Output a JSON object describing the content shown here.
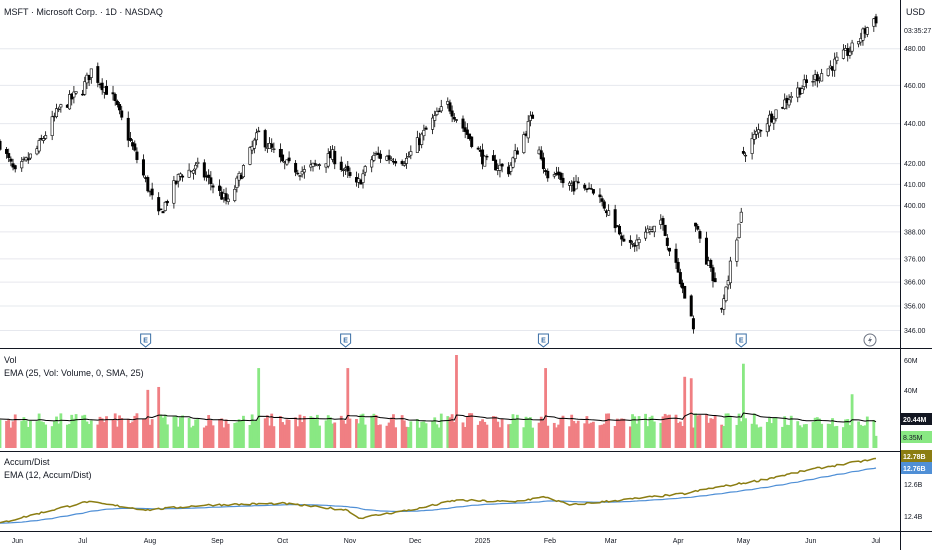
{
  "header": {
    "symbol_title": "MSFT · Microsoft Corp. · 1D · NASDAQ",
    "currency": "USD",
    "countdown": "03:35:27"
  },
  "colors": {
    "up": "#000000",
    "down": "#000000",
    "vol_up": "#89e883",
    "vol_down": "#f07f83",
    "vol_ema": "#000000",
    "accum": "#8b7d12",
    "accum_ema": "#4f8fd6",
    "grid": "#e6e8ee",
    "separator": "#131722"
  },
  "price_pane": {
    "y_ticks": [
      "480.00",
      "460.00",
      "440.00",
      "420.00",
      "410.00",
      "400.00",
      "388.00",
      "376.00",
      "366.00",
      "356.00",
      "346.00"
    ],
    "earnings_marker_label": "E",
    "earnings_dates": [
      "2024-07-30",
      "2024-10-30",
      "2025-01-29",
      "2025-04-30"
    ],
    "dividend_icon": "lightning-icon"
  },
  "volume_pane": {
    "title": "Vol",
    "indicator_label": "EMA (25, Vol: Volume, 0, SMA, 25)",
    "y_ticks": [
      "60M",
      "40M"
    ],
    "ema_value_badge": "20.44M",
    "last_volume_badge": "8.35M"
  },
  "accum_pane": {
    "title": "Accum/Dist",
    "indicator_label": "EMA (12, Accum/Dist)",
    "y_ticks": [
      "12.6B",
      "12.4B"
    ],
    "value_badge": "12.78B",
    "ema_badge": "12.76B"
  },
  "x_axis": {
    "labels": [
      "Jun",
      "Jul",
      "Aug",
      "Sep",
      "Oct",
      "Nov",
      "Dec",
      "2025",
      "Feb",
      "Mar",
      "Apr",
      "May",
      "Jun",
      "Jul"
    ]
  },
  "chart_data": {
    "type": "candlestick",
    "title": "MSFT · Microsoft Corp. · 1D · NASDAQ",
    "currency": "USD",
    "price_scale": "log",
    "x_range": [
      "2024-05-24",
      "2025-07-01"
    ],
    "y_range": [
      343,
      505
    ],
    "price_path": [
      {
        "date": "2024-05-24",
        "close": 430
      },
      {
        "date": "2024-05-31",
        "close": 415
      },
      {
        "date": "2024-06-10",
        "close": 427
      },
      {
        "date": "2024-06-20",
        "close": 447
      },
      {
        "date": "2024-07-01",
        "close": 458
      },
      {
        "date": "2024-07-05",
        "close": 468
      },
      {
        "date": "2024-07-15",
        "close": 453
      },
      {
        "date": "2024-07-25",
        "close": 425
      },
      {
        "date": "2024-08-05",
        "close": 395
      },
      {
        "date": "2024-08-15",
        "close": 415
      },
      {
        "date": "2024-08-23",
        "close": 418
      },
      {
        "date": "2024-09-06",
        "close": 401
      },
      {
        "date": "2024-09-20",
        "close": 435
      },
      {
        "date": "2024-10-01",
        "close": 420
      },
      {
        "date": "2024-10-11",
        "close": 416
      },
      {
        "date": "2024-10-24",
        "close": 424
      },
      {
        "date": "2024-11-04",
        "close": 409
      },
      {
        "date": "2024-11-12",
        "close": 424
      },
      {
        "date": "2024-11-27",
        "close": 422
      },
      {
        "date": "2024-12-10",
        "close": 443
      },
      {
        "date": "2024-12-16",
        "close": 450
      },
      {
        "date": "2025-01-02",
        "close": 421
      },
      {
        "date": "2025-01-13",
        "close": 417
      },
      {
        "date": "2025-01-24",
        "close": 444
      },
      {
        "date": "2025-01-30",
        "close": 414
      },
      {
        "date": "2025-02-10",
        "close": 410
      },
      {
        "date": "2025-02-21",
        "close": 408
      },
      {
        "date": "2025-03-03",
        "close": 392
      },
      {
        "date": "2025-03-10",
        "close": 381
      },
      {
        "date": "2025-03-24",
        "close": 393
      },
      {
        "date": "2025-04-04",
        "close": 360
      },
      {
        "date": "2025-04-08",
        "close": 348
      },
      {
        "date": "2025-04-09",
        "close": 390
      },
      {
        "date": "2025-04-21",
        "close": 356
      },
      {
        "date": "2025-04-30",
        "close": 395
      },
      {
        "date": "2025-05-01",
        "close": 425
      },
      {
        "date": "2025-05-09",
        "close": 438
      },
      {
        "date": "2025-05-23",
        "close": 455
      },
      {
        "date": "2025-06-10",
        "close": 470
      },
      {
        "date": "2025-06-20",
        "close": 480
      },
      {
        "date": "2025-06-30",
        "close": 497
      }
    ],
    "volume": {
      "name": "Vol",
      "ema_period": 25,
      "ema_last_millions": 20.44,
      "last_millions": 8.35,
      "y_ticks_millions": [
        60,
        40
      ],
      "spikes": [
        {
          "date": "2024-07-31",
          "millions": 40
        },
        {
          "date": "2024-08-05",
          "millions": 42
        },
        {
          "date": "2024-09-20",
          "millions": 55
        },
        {
          "date": "2024-10-31",
          "millions": 55
        },
        {
          "date": "2024-12-20",
          "millions": 64
        },
        {
          "date": "2025-01-30",
          "millions": 55
        },
        {
          "date": "2025-04-04",
          "millions": 49
        },
        {
          "date": "2025-04-07",
          "millions": 48
        },
        {
          "date": "2025-05-01",
          "millions": 58
        },
        {
          "date": "2025-06-20",
          "millions": 37
        }
      ]
    },
    "accum_dist": {
      "name": "Accum/Dist",
      "ema_period": 12,
      "last_billions": 12.78,
      "ema_last_billions": 12.76,
      "y_ticks_billions": [
        12.6,
        12.4
      ],
      "path": [
        {
          "date": "2024-05-24",
          "value": 12.39
        },
        {
          "date": "2024-06-14",
          "value": 12.46
        },
        {
          "date": "2024-07-03",
          "value": 12.52
        },
        {
          "date": "2024-07-31",
          "value": 12.47
        },
        {
          "date": "2024-08-26",
          "value": 12.5
        },
        {
          "date": "2024-10-01",
          "value": 12.51
        },
        {
          "date": "2024-10-31",
          "value": 12.47
        },
        {
          "date": "2024-11-05",
          "value": 12.42
        },
        {
          "date": "2024-12-03",
          "value": 12.48
        },
        {
          "date": "2024-12-20",
          "value": 12.53
        },
        {
          "date": "2025-01-15",
          "value": 12.52
        },
        {
          "date": "2025-01-30",
          "value": 12.55
        },
        {
          "date": "2025-02-10",
          "value": 12.5
        },
        {
          "date": "2025-03-05",
          "value": 12.53
        },
        {
          "date": "2025-04-04",
          "value": 12.57
        },
        {
          "date": "2025-04-15",
          "value": 12.6
        },
        {
          "date": "2025-05-08",
          "value": 12.65
        },
        {
          "date": "2025-06-02",
          "value": 12.72
        },
        {
          "date": "2025-06-30",
          "value": 12.78
        }
      ]
    }
  }
}
